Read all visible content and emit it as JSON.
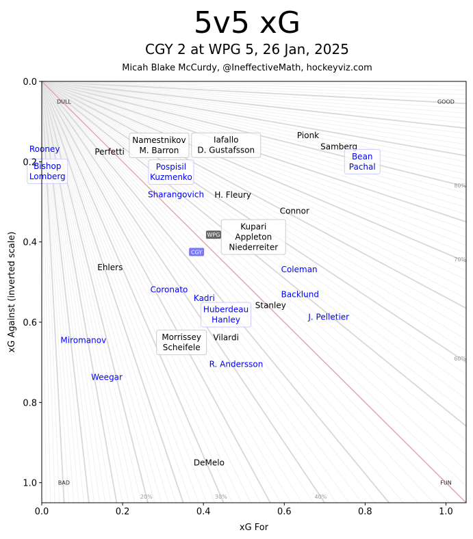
{
  "chart_data": {
    "type": "scatter",
    "title": "5v5 xG",
    "subtitle": "CGY 2 at WPG 5, 26 Jan, 2025",
    "credit": "Micah Blake McCurdy, @IneffectiveMath, hockeyviz.com",
    "xlabel": "xG For",
    "ylabel": "xG Against (inverted scale)",
    "xlim": [
      0,
      1.05
    ],
    "ylim": [
      1.05,
      0
    ],
    "x_ticks": [
      "0.0",
      "0.2",
      "0.4",
      "0.6",
      "0.8",
      "1.0"
    ],
    "y_ticks": [
      "0.0",
      "0.2",
      "0.4",
      "0.6",
      "0.8",
      "1.0"
    ],
    "corner_labels": {
      "dull": "DULL",
      "good": "GOOD",
      "bad": "BAD",
      "fun": "FUN"
    },
    "share_labels": [
      {
        "text": "20%",
        "share": 0.2
      },
      {
        "text": "30%",
        "share": 0.3
      },
      {
        "text": "40%",
        "share": 0.4
      },
      {
        "text": "60%",
        "share": 0.6
      },
      {
        "text": "70%",
        "share": 0.7
      },
      {
        "text": "80%",
        "share": 0.8
      }
    ],
    "team_colors": {
      "CGY": "#0000ff",
      "WPG": "#000000"
    },
    "teams": [
      {
        "name": "WPG",
        "x": 0.425,
        "y": 0.382,
        "color": "#666666"
      },
      {
        "name": "CGY",
        "x": 0.383,
        "y": 0.425,
        "color": "#7777ff"
      }
    ],
    "points": [
      {
        "team": "CGY",
        "labels": [
          "Rooney"
        ],
        "x": 0.007,
        "y": 0.169
      },
      {
        "team": "CGY",
        "labels": [
          "Bishop",
          "Lomberg"
        ],
        "x": 0.014,
        "y": 0.224,
        "box": true
      },
      {
        "team": "WPG",
        "labels": [
          "Perfetti"
        ],
        "x": 0.244,
        "y": 0.177
      },
      {
        "team": "WPG",
        "labels": [
          "Namestnikov",
          "M. Barron"
        ],
        "x": 0.292,
        "y": 0.19,
        "box": true
      },
      {
        "team": "WPG",
        "labels": [
          "Iafallo",
          "D. Gustafsson"
        ],
        "x": 0.39,
        "y": 0.193,
        "box": true
      },
      {
        "team": "CGY",
        "labels": [
          "Pospisil",
          "Kuzmenko"
        ],
        "x": 0.32,
        "y": 0.209,
        "box": true
      },
      {
        "team": "CGY",
        "labels": [
          "Sharangovich"
        ],
        "x": 0.332,
        "y": 0.282
      },
      {
        "team": "WPG",
        "labels": [
          "H. Fleury"
        ],
        "x": 0.444,
        "y": 0.283
      },
      {
        "team": "WPG",
        "labels": [
          "Pionk"
        ],
        "x": 0.669,
        "y": 0.143
      },
      {
        "team": "WPG",
        "labels": [
          "Samberg"
        ],
        "x": 0.725,
        "y": 0.159
      },
      {
        "team": "CGY",
        "labels": [
          "Bean",
          "Pachal"
        ],
        "x": 0.793,
        "y": 0.2,
        "box": true
      },
      {
        "team": "WPG",
        "labels": [
          "Connor"
        ],
        "x": 0.573,
        "y": 0.34
      },
      {
        "team": "WPG",
        "labels": [
          "Kupari",
          "Appleton",
          "Niederreiter"
        ],
        "x": 0.495,
        "y": 0.381,
        "box": true
      },
      {
        "team": "WPG",
        "labels": [
          "Ehlers"
        ],
        "x": 0.169,
        "y": 0.464
      },
      {
        "team": "CGY",
        "labels": [
          "Coleman"
        ],
        "x": 0.637,
        "y": 0.469
      },
      {
        "team": "CGY",
        "labels": [
          "Coronato"
        ],
        "x": 0.315,
        "y": 0.519
      },
      {
        "team": "CGY",
        "labels": [
          "Backlund"
        ],
        "x": 0.639,
        "y": 0.531
      },
      {
        "team": "CGY",
        "labels": [
          "Kadri"
        ],
        "x": 0.402,
        "y": 0.549
      },
      {
        "team": "CGY",
        "labels": [
          "Huberdeau",
          "Hanley"
        ],
        "x": 0.432,
        "y": 0.59,
        "box": true
      },
      {
        "team": "WPG",
        "labels": [
          "Stanley"
        ],
        "x": 0.451,
        "y": 0.582
      },
      {
        "team": "CGY",
        "labels": [
          "J. Pelletier"
        ],
        "x": 0.71,
        "y": 0.587
      },
      {
        "team": "WPG",
        "labels": [
          "Morrissey",
          "Scheifele"
        ],
        "x": 0.361,
        "y": 0.63,
        "box": true
      },
      {
        "team": "WPG",
        "labels": [
          "Vilardi"
        ],
        "x": 0.405,
        "y": 0.625
      },
      {
        "team": "CGY",
        "labels": [
          "Miromanov"
        ],
        "x": 0.103,
        "y": 0.645
      },
      {
        "team": "CGY",
        "labels": [
          "R. Andersson"
        ],
        "x": 0.464,
        "y": 0.698
      },
      {
        "team": "CGY",
        "labels": [
          "Weegar"
        ],
        "x": 0.161,
        "y": 0.737
      },
      {
        "team": "WPG",
        "labels": [
          "DeMelo"
        ],
        "x": 0.414,
        "y": 0.95
      }
    ]
  }
}
